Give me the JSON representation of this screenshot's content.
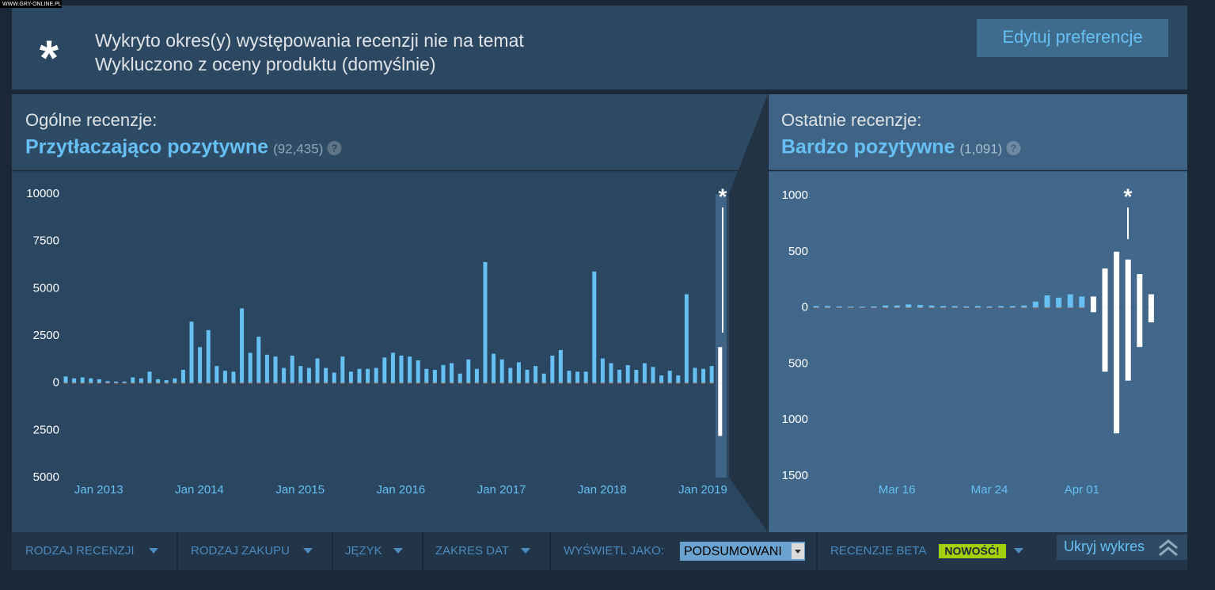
{
  "watermark": "WWW.GRY-ONLINE.PL",
  "banner": {
    "icon": "*",
    "line1": "Wykryto okres(y) występowania recenzji nie na temat",
    "line2": "Wykluczono z oceny produktu (domyślnie)",
    "button": "Edytuj preferencje"
  },
  "chart_data": [
    {
      "type": "bar",
      "heading": "Ogólne recenzje:",
      "rating": "Przytłaczająco pozytywne",
      "count": "(92,435)",
      "help": "?",
      "annotation": "*",
      "categories": [
        null,
        null,
        null,
        "Jan 2013",
        null,
        null,
        null,
        null,
        null,
        null,
        null,
        null,
        null,
        null,
        null,
        "Jan 2014",
        null,
        null,
        null,
        null,
        null,
        null,
        null,
        null,
        null,
        null,
        null,
        "Jan 2015",
        null,
        null,
        null,
        null,
        null,
        null,
        null,
        null,
        null,
        null,
        null,
        "Jan 2016",
        null,
        null,
        null,
        null,
        null,
        null,
        null,
        null,
        null,
        null,
        null,
        "Jan 2017",
        null,
        null,
        null,
        null,
        null,
        null,
        null,
        null,
        null,
        null,
        null,
        "Jan 2018",
        null,
        null,
        null,
        null,
        null,
        null,
        null,
        null,
        null,
        null,
        null,
        "Jan 2019",
        null,
        null,
        null
      ],
      "series": [
        {
          "color": "#66c0f4",
          "values": [
            350,
            250,
            300,
            250,
            200,
            100,
            80,
            80,
            300,
            250,
            600,
            200,
            150,
            250,
            700,
            3250,
            1900,
            2800,
            900,
            650,
            600,
            3950,
            1600,
            2450,
            1500,
            1400,
            800,
            1450,
            900,
            800,
            1300,
            800,
            550,
            1400,
            600,
            750,
            750,
            800,
            1350,
            1600,
            1450,
            1400,
            1200,
            750,
            700,
            950,
            1050,
            500,
            1250,
            750,
            6400,
            1550,
            1250,
            800,
            1100,
            700,
            900,
            500,
            1450,
            1750,
            650,
            600,
            600,
            5900,
            1300,
            1050,
            700,
            950,
            700,
            1050,
            850,
            400,
            650,
            400,
            4700,
            800,
            750,
            900,
            null
          ]
        },
        {
          "color": "#a34c25",
          "values": [
            -40,
            -40,
            -40,
            -40,
            -40,
            -40,
            -40,
            -40,
            -40,
            -40,
            -40,
            -40,
            -40,
            -40,
            -40,
            -40,
            -40,
            -40,
            -40,
            -40,
            -40,
            -40,
            -40,
            -40,
            -40,
            -40,
            -40,
            -40,
            -40,
            -40,
            -40,
            -40,
            -40,
            -40,
            -40,
            -40,
            -40,
            -40,
            -40,
            -40,
            -40,
            -40,
            -40,
            -40,
            -40,
            -40,
            -40,
            -40,
            -40,
            -40,
            -40,
            -40,
            -40,
            -40,
            -40,
            -40,
            -40,
            -40,
            -40,
            -40,
            -40,
            -40,
            -40,
            -40,
            -40,
            -40,
            -40,
            -40,
            -40,
            -40,
            -40,
            -40,
            -40,
            -40,
            -40,
            -40,
            -40,
            -40,
            null
          ]
        },
        {
          "color": "#ffffff",
          "values": [
            null,
            null,
            null,
            null,
            null,
            null,
            null,
            null,
            null,
            null,
            null,
            null,
            null,
            null,
            null,
            null,
            null,
            null,
            null,
            null,
            null,
            null,
            null,
            null,
            null,
            null,
            null,
            null,
            null,
            null,
            null,
            null,
            null,
            null,
            null,
            null,
            null,
            null,
            null,
            null,
            null,
            null,
            null,
            null,
            null,
            null,
            null,
            null,
            null,
            null,
            null,
            null,
            null,
            null,
            null,
            null,
            null,
            null,
            null,
            null,
            null,
            null,
            null,
            null,
            null,
            null,
            null,
            null,
            null,
            null,
            null,
            null,
            null,
            null,
            null,
            null,
            null,
            null,
            1900
          ]
        },
        {
          "color": "#ffffff",
          "values": [
            null,
            null,
            null,
            null,
            null,
            null,
            null,
            null,
            null,
            null,
            null,
            null,
            null,
            null,
            null,
            null,
            null,
            null,
            null,
            null,
            null,
            null,
            null,
            null,
            null,
            null,
            null,
            null,
            null,
            null,
            null,
            null,
            null,
            null,
            null,
            null,
            null,
            null,
            null,
            null,
            null,
            null,
            null,
            null,
            null,
            null,
            null,
            null,
            null,
            null,
            null,
            null,
            null,
            null,
            null,
            null,
            null,
            null,
            null,
            null,
            null,
            null,
            null,
            null,
            null,
            null,
            null,
            null,
            null,
            null,
            null,
            null,
            null,
            null,
            null,
            null,
            null,
            null,
            -2800
          ]
        }
      ],
      "ylim": [
        -5000,
        10000
      ],
      "yticks": [
        10000,
        7500,
        5000,
        2500,
        0,
        {
          "value": -2500,
          "label": "2500"
        },
        {
          "value": -5000,
          "label": "5000"
        }
      ],
      "grid": false
    },
    {
      "type": "bar",
      "heading": "Ostatnie recenzje:",
      "rating": "Bardzo pozytywne",
      "count": "(1,091)",
      "help": "?",
      "annotation": "*",
      "categories": [
        null,
        null,
        null,
        null,
        null,
        null,
        null,
        "Mar 16",
        null,
        null,
        null,
        null,
        null,
        null,
        null,
        "Mar 24",
        null,
        null,
        null,
        null,
        null,
        null,
        null,
        "Apr 01",
        null,
        null,
        null,
        null,
        null,
        null
      ],
      "series": [
        {
          "color": "#66c0f4",
          "values": [
            15,
            15,
            12,
            10,
            10,
            12,
            20,
            20,
            30,
            25,
            20,
            15,
            15,
            12,
            15,
            12,
            15,
            15,
            20,
            55,
            110,
            90,
            120,
            100,
            null,
            null,
            null,
            null,
            null,
            null
          ]
        },
        {
          "color": "#a34c25",
          "values": [
            -5,
            -5,
            -5,
            -5,
            -5,
            -5,
            -5,
            -5,
            -5,
            -5,
            -5,
            -5,
            -5,
            -5,
            -5,
            -5,
            -5,
            -5,
            -5,
            -5,
            -5,
            -5,
            -5,
            -5,
            null,
            null,
            null,
            null,
            null,
            null
          ]
        },
        {
          "color": "#ffffff",
          "values": [
            null,
            null,
            null,
            null,
            null,
            null,
            null,
            null,
            null,
            null,
            null,
            null,
            null,
            null,
            null,
            null,
            null,
            null,
            null,
            null,
            null,
            null,
            null,
            null,
            100,
            350,
            500,
            430,
            300,
            120
          ]
        },
        {
          "color": "#ffffff",
          "values": [
            null,
            null,
            null,
            null,
            null,
            null,
            null,
            null,
            null,
            null,
            null,
            null,
            null,
            null,
            null,
            null,
            null,
            null,
            null,
            null,
            null,
            null,
            null,
            null,
            -40,
            -570,
            -1120,
            -650,
            -350,
            -130
          ]
        }
      ],
      "ylim": [
        -1500,
        1000
      ],
      "yticks": [
        1000,
        500,
        0,
        {
          "value": -500,
          "label": "500"
        },
        {
          "value": -1000,
          "label": "1000"
        },
        {
          "value": -1500,
          "label": "1500"
        }
      ],
      "grid": false
    }
  ],
  "filters": {
    "items": [
      "RODZAJ RECENZJI",
      "RODZAJ ZAKUPU",
      "JĘZYK",
      "ZAKRES DAT"
    ],
    "display_label": "WYŚWIETL JAKO:",
    "display_value": "PODSUMOWANI",
    "beta": "RECENZJE BETA",
    "badge": "NOWOŚĆ!",
    "hide": "Ukryj wykres"
  }
}
